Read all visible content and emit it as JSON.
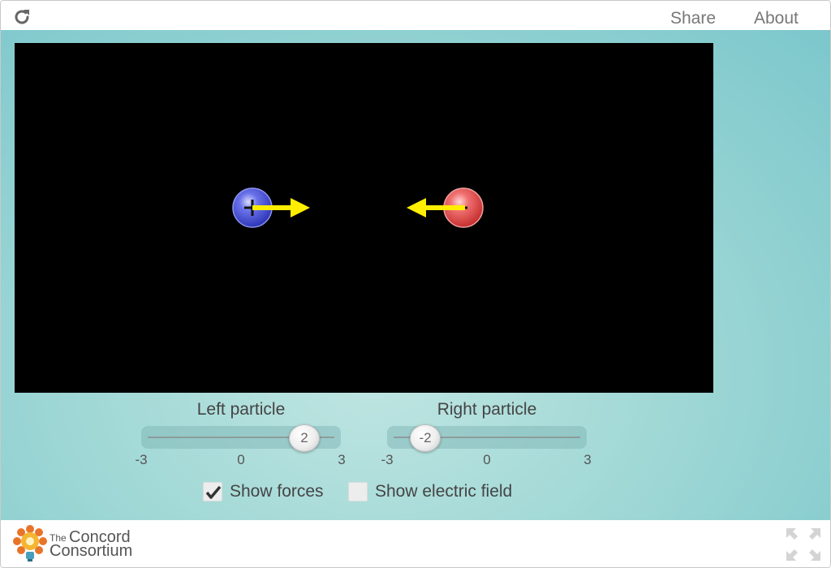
{
  "topbar": {
    "reload_icon": "reload-icon",
    "share_label": "Share",
    "about_label": "About"
  },
  "simulation": {
    "left_particle": {
      "charge": 2,
      "sign": "+",
      "color": "#4b55d8",
      "force_direction": "right"
    },
    "right_particle": {
      "charge": -2,
      "sign": "-",
      "color": "#e04848",
      "force_direction": "left"
    },
    "force_arrow_color": "#ffee00",
    "background": "#000000"
  },
  "controls": {
    "left_slider": {
      "title": "Left particle",
      "value": "2",
      "min_label": "-3",
      "mid_label": "0",
      "max_label": "3",
      "min": -3,
      "max": 3,
      "current": 2
    },
    "right_slider": {
      "title": "Right particle",
      "value": "-2",
      "min_label": "-3",
      "mid_label": "0",
      "max_label": "3",
      "min": -3,
      "max": 3,
      "current": -2
    },
    "show_forces": {
      "label": "Show forces",
      "checked": true
    },
    "show_field": {
      "label": "Show electric field",
      "checked": false
    }
  },
  "footer": {
    "logo_the": "The",
    "logo_line1": "Concord",
    "logo_line2": "Consortium",
    "fullscreen_icon": "fullscreen-icon"
  }
}
